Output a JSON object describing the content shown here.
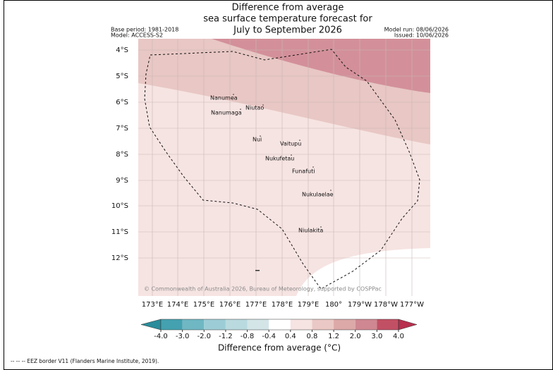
{
  "title": [
    "Difference from average",
    "sea surface temperature forecast for",
    "July to September 2026"
  ],
  "meta_left": [
    "Base period: 1981-2018",
    "Model: ACCESS-S2"
  ],
  "meta_right": [
    "Model run: 08/06/2026",
    "Issued: 10/06/2026"
  ],
  "lat_labels": [
    "4°S",
    "5°S",
    "6°S",
    "7°S",
    "8°S",
    "9°S",
    "10°S",
    "11°S",
    "12°S"
  ],
  "lon_labels": [
    "173°E",
    "174°E",
    "175°E",
    "176°E",
    "177°E",
    "178°E",
    "179°E",
    "180°",
    "179°W",
    "178°W",
    "177°W"
  ],
  "places": [
    "Nanumea",
    "Niutao",
    "Nanumaga",
    "Nui",
    "Vaitupu",
    "Nukufetau",
    "Funafuti",
    "Nukulaelae",
    "Niulakita"
  ],
  "copyright": "© Commonwealth of Australia 2026, Bureau of Meteorology, supported by COSPPac",
  "colorbar": {
    "ticks": [
      {
        "value": -4,
        "label": "-4.0"
      },
      {
        "value": -3,
        "label": "-3.0"
      },
      {
        "value": -2,
        "label": "-2.0"
      },
      {
        "value": -1.2,
        "label": "-1.2"
      },
      {
        "value": -0.8,
        "label": "-0.8"
      },
      {
        "value": -0.4,
        "label": "-0.4"
      },
      {
        "value": 0.4,
        "label": "0.4"
      },
      {
        "value": 0.8,
        "label": "0.8"
      },
      {
        "value": 1.2,
        "label": "1.2"
      },
      {
        "value": 2,
        "label": "2.0"
      },
      {
        "value": 3,
        "label": "3.0"
      },
      {
        "value": 4,
        "label": "4.0"
      }
    ],
    "colors": [
      "#2b8c9b",
      "#44a1b0",
      "#6fb7c3",
      "#9ccdd6",
      "#b9dadf",
      "#d3e5e7",
      "#ffffff",
      "#f6e4e2",
      "#eac8c5",
      "#dca8a8",
      "#cf8791",
      "#c25064",
      "#b8304e"
    ],
    "label": "Difference from average (°C)"
  },
  "footnote": "-- -- -- EEZ border V11 (Flanders Marine Institute, 2019)."
}
